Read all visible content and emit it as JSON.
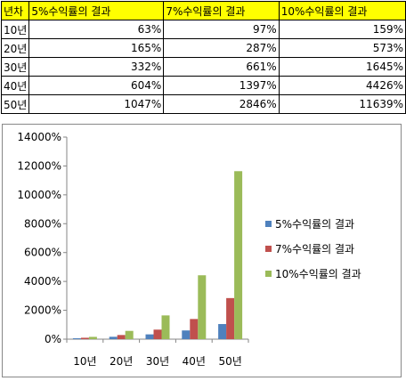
{
  "table": {
    "headers": [
      "년차",
      "5%수익률의 결과",
      "7%수익률의 결과",
      "10%수익률의 결과"
    ],
    "rows": [
      [
        "10년",
        "63%",
        "97%",
        "159%"
      ],
      [
        "20년",
        "165%",
        "287%",
        "573%"
      ],
      [
        "30년",
        "332%",
        "661%",
        "1645%"
      ],
      [
        "40년",
        "604%",
        "1397%",
        "4426%"
      ],
      [
        "50년",
        "1047%",
        "2846%",
        "11639%"
      ]
    ],
    "header_color": "#ffff00"
  },
  "chart_data": {
    "type": "bar",
    "title": "",
    "xlabel": "",
    "ylabel": "",
    "categories": [
      "10년",
      "20년",
      "30년",
      "40년",
      "50년"
    ],
    "series": [
      {
        "name": "5%수익률의 결과",
        "values": [
          63,
          165,
          332,
          604,
          1047
        ],
        "color": "#4f81bd"
      },
      {
        "name": "7%수익률의 결과",
        "values": [
          97,
          287,
          661,
          1397,
          2846
        ],
        "color": "#c0504d"
      },
      {
        "name": "10%수익률의 결과",
        "values": [
          159,
          573,
          1645,
          4426,
          11639
        ],
        "color": "#9bbb59"
      }
    ],
    "ylim": [
      0,
      14000
    ],
    "yticks": [
      0,
      2000,
      4000,
      6000,
      8000,
      10000,
      12000,
      14000
    ],
    "ytick_labels": [
      "0%",
      "2000%",
      "4000%",
      "6000%",
      "8000%",
      "10000%",
      "12000%",
      "14000%"
    ],
    "grid": false,
    "legend_position": "right"
  }
}
